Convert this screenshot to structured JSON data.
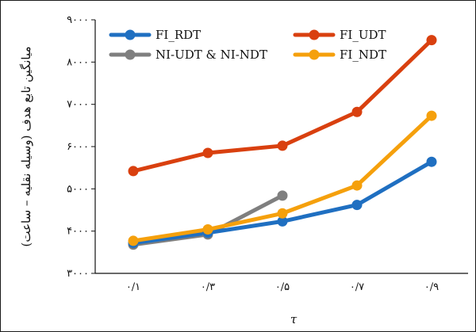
{
  "chart_data": {
    "type": "line",
    "x_tick_labels": [
      "۰/۱",
      "۰/۳",
      "۰/۵",
      "۰/۷",
      "۰/۹"
    ],
    "x": [
      0.1,
      0.3,
      0.5,
      0.7,
      0.9
    ],
    "xlabel": "τ",
    "ylabel": "میانگین تابع هدف (وسیله نقلیه – ساعت)",
    "ylim": [
      3000,
      9000
    ],
    "y_ticks": [
      3000,
      4000,
      5000,
      6000,
      7000,
      8000,
      9000
    ],
    "y_tick_labels": [
      "۳۰۰۰",
      "۴۰۰۰",
      "۵۰۰۰",
      "۶۰۰۰",
      "۷۰۰۰",
      "۸۰۰۰",
      "۹۰۰۰"
    ],
    "grid": false,
    "legend_position": "top",
    "series": [
      {
        "name": "FI_RDT",
        "color": "#1f6fc1",
        "values": [
          3720,
          3960,
          4230,
          4620,
          5640
        ]
      },
      {
        "name": "FI_UDT",
        "color": "#d9400f",
        "values": [
          5420,
          5850,
          6020,
          6820,
          8520
        ]
      },
      {
        "name": "NI-UDT & NI-NDT",
        "color": "#7f7f7f",
        "values": [
          3680,
          3920,
          4840,
          null,
          null
        ]
      },
      {
        "name": "FI_NDT",
        "color": "#f5a00c",
        "values": [
          3770,
          4040,
          4420,
          5080,
          6730
        ]
      }
    ]
  }
}
